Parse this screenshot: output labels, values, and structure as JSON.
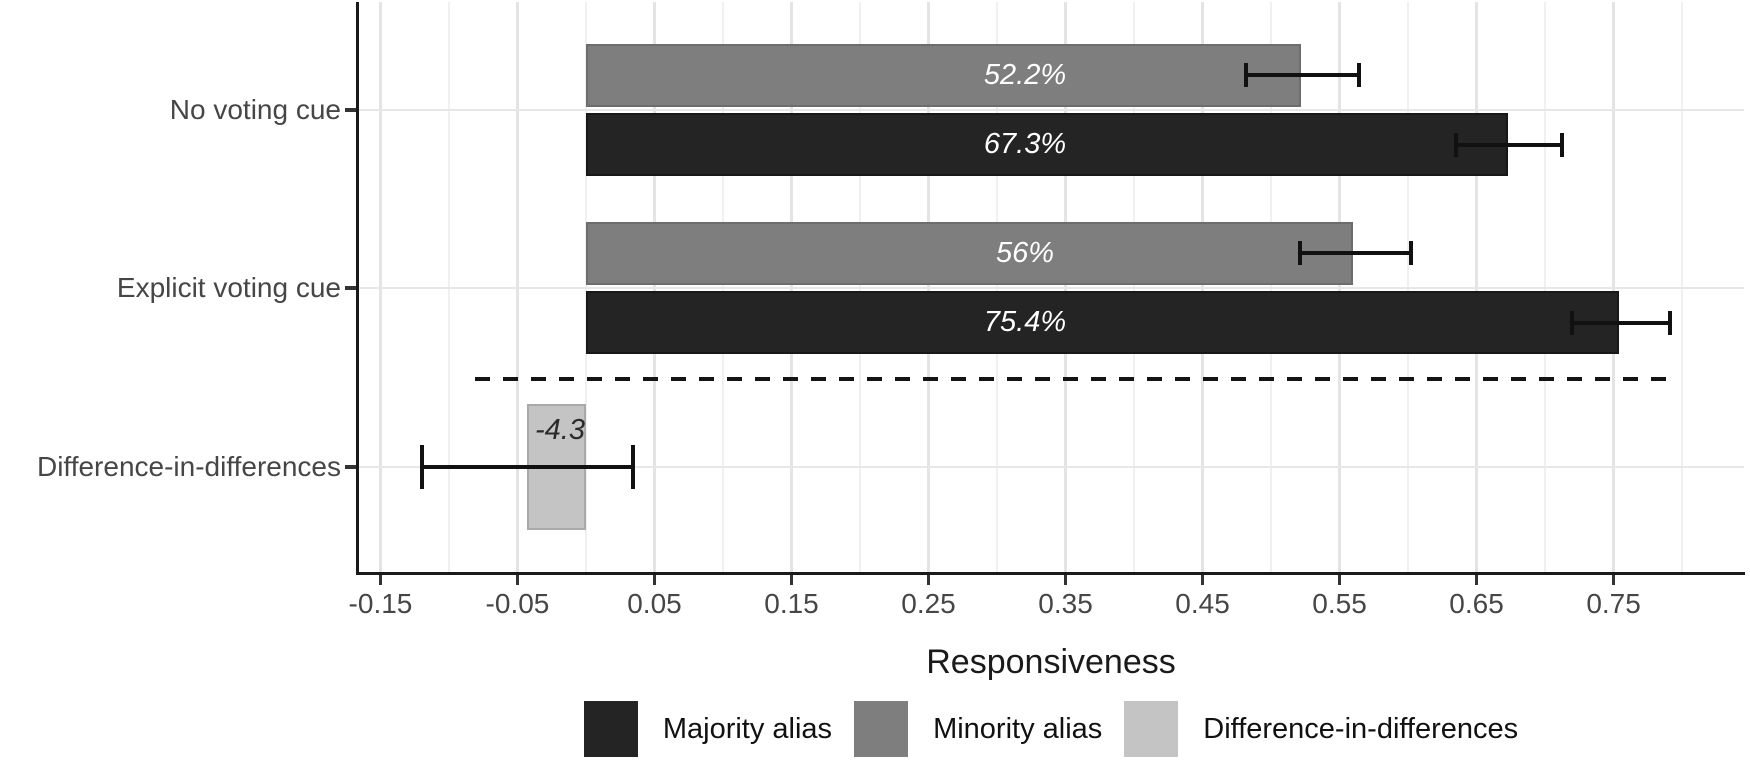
{
  "figure": {
    "background": "#ffffff"
  },
  "chart_data": {
    "type": "bar",
    "orientation": "horizontal",
    "title": "",
    "xlabel": "Responsiveness",
    "ylabel": "",
    "grid": true,
    "legend_position": "bottom",
    "xlim": [
      -0.1664,
      0.8452
    ],
    "x_major_ticks": [
      {
        "value": -0.15,
        "label": "-0.15"
      },
      {
        "value": -0.05,
        "label": "-0.05"
      },
      {
        "value": 0.05,
        "label": "0.05"
      },
      {
        "value": 0.15,
        "label": "0.15"
      },
      {
        "value": 0.25,
        "label": "0.25"
      },
      {
        "value": 0.35,
        "label": "0.35"
      },
      {
        "value": 0.45,
        "label": "0.45"
      },
      {
        "value": 0.55,
        "label": "0.55"
      },
      {
        "value": 0.65,
        "label": "0.65"
      },
      {
        "value": 0.75,
        "label": "0.75"
      }
    ],
    "x_minor_ticks": [
      -0.1,
      0.0,
      0.1,
      0.2,
      0.3,
      0.4,
      0.5,
      0.6,
      0.7,
      0.8
    ],
    "categories": [
      "No voting cue",
      "Explicit voting cue",
      "Difference-in-differences"
    ],
    "groups": [
      {
        "category": "No voting cue",
        "bars": [
          {
            "series": "Minority alias",
            "value": 0.522,
            "label": "52.2%",
            "ci": [
              0.482,
              0.564
            ]
          },
          {
            "series": "Majority alias",
            "value": 0.673,
            "label": "67.3%",
            "ci": [
              0.635,
              0.712
            ]
          }
        ]
      },
      {
        "category": "Explicit voting cue",
        "bars": [
          {
            "series": "Minority alias",
            "value": 0.56,
            "label": "56%",
            "ci": [
              0.521,
              0.602
            ]
          },
          {
            "series": "Majority alias",
            "value": 0.754,
            "label": "75.4%",
            "ci": [
              0.72,
              0.791
            ]
          }
        ]
      },
      {
        "category": "Difference-in-differences",
        "bars": [
          {
            "series": "Difference-in-differences",
            "value": -0.043,
            "label": "-4.3",
            "ci": [
              -0.12,
              0.034
            ]
          }
        ]
      }
    ],
    "separator": {
      "style": "dashed",
      "between_categories": [
        "Explicit voting cue",
        "Difference-in-differences"
      ],
      "x_start": -0.081,
      "x_end": 0.793
    },
    "legend": [
      {
        "label": "Majority alias",
        "color": "#242424",
        "stroke": "#181818",
        "label_color": "#ffffff"
      },
      {
        "label": "Minority alias",
        "color": "#7e7e7e",
        "stroke": "#6d6d6d",
        "label_color": "#ffffff"
      },
      {
        "label": "Difference-in-differences",
        "color": "#c4c4c4",
        "stroke": "#a9a9a9",
        "label_color": "#2b2b2b"
      }
    ]
  },
  "colors": {
    "axis_line": "#1a1a1a",
    "tick_text": "#464646",
    "grid_major": "#e4e4e4",
    "grid_minor": "#f0f0f0",
    "errorbar": "#111111",
    "background": "#ffffff"
  }
}
